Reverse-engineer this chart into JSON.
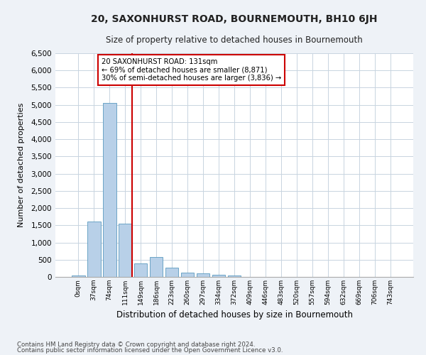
{
  "title": "20, SAXONHURST ROAD, BOURNEMOUTH, BH10 6JH",
  "subtitle": "Size of property relative to detached houses in Bournemouth",
  "xlabel": "Distribution of detached houses by size in Bournemouth",
  "ylabel": "Number of detached properties",
  "bar_color": "#b8d0e8",
  "bar_edge_color": "#5a9abf",
  "annotation_line_color": "#cc0000",
  "annotation_box_color": "#cc0000",
  "categories": [
    "0sqm",
    "37sqm",
    "74sqm",
    "111sqm",
    "149sqm",
    "186sqm",
    "223sqm",
    "260sqm",
    "297sqm",
    "334sqm",
    "372sqm",
    "409sqm",
    "446sqm",
    "483sqm",
    "520sqm",
    "557sqm",
    "594sqm",
    "632sqm",
    "669sqm",
    "706sqm",
    "743sqm"
  ],
  "values": [
    50,
    1600,
    5050,
    1540,
    390,
    570,
    260,
    130,
    100,
    70,
    50,
    0,
    0,
    0,
    0,
    0,
    0,
    0,
    0,
    0,
    0
  ],
  "property_label": "20 SAXONHURST ROAD: 131sqm",
  "annotation_line1": "← 69% of detached houses are smaller (8,871)",
  "annotation_line2": "30% of semi-detached houses are larger (3,836) →",
  "ylim": [
    0,
    6500
  ],
  "yticks": [
    0,
    500,
    1000,
    1500,
    2000,
    2500,
    3000,
    3500,
    4000,
    4500,
    5000,
    5500,
    6000,
    6500
  ],
  "footer1": "Contains HM Land Registry data © Crown copyright and database right 2024.",
  "footer2": "Contains public sector information licensed under the Open Government Licence v3.0.",
  "background_color": "#eef2f7",
  "plot_bg_color": "#ffffff",
  "grid_color": "#c8d4e0"
}
